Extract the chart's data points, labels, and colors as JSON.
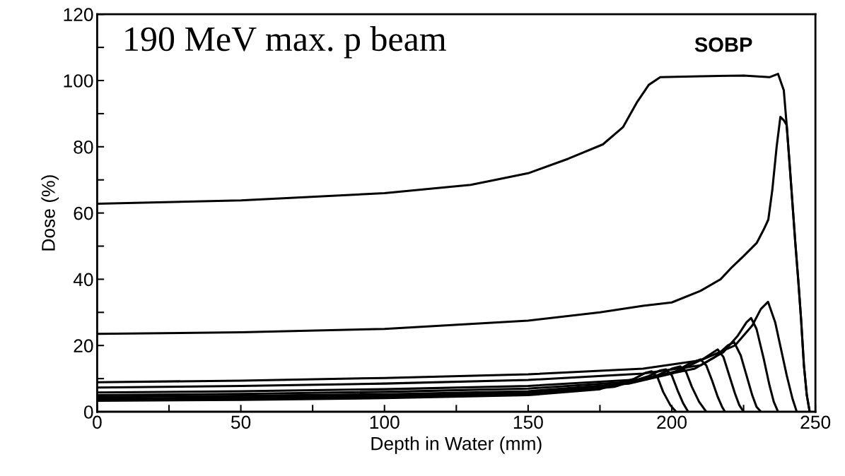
{
  "chart_data": {
    "type": "line",
    "xlabel": "Depth in Water (mm)",
    "ylabel": "Dose (%)",
    "xlim": [
      0,
      250
    ],
    "ylim": [
      0,
      120
    ],
    "xticks": [
      0,
      {
        "value": 25,
        "label": null
      },
      50,
      {
        "value": 75,
        "label": null
      },
      100,
      {
        "value": 125,
        "label": null
      },
      150,
      {
        "value": 175,
        "label": null
      },
      200,
      {
        "value": 225,
        "label": null
      },
      250
    ],
    "yticks": [
      0,
      {
        "value": 10,
        "label": null
      },
      20,
      {
        "value": 30,
        "label": null
      },
      40,
      {
        "value": 50,
        "label": null
      },
      60,
      {
        "value": 70,
        "label": null
      },
      80,
      {
        "value": 90,
        "label": null
      },
      100,
      {
        "value": 110,
        "label": null
      },
      120
    ],
    "grid": false,
    "legend": false,
    "marker": "none",
    "line_style": "solid",
    "annotations": [
      "190 MeV max. p beam",
      "SOBP"
    ],
    "series": [
      {
        "color": "#000000",
        "x": [
          0,
          50,
          100,
          130,
          150,
          164,
          176,
          183,
          188,
          192,
          196,
          210,
          225,
          234,
          237,
          239,
          240,
          241,
          242,
          243,
          244,
          245,
          246,
          247,
          248
        ],
        "values": [
          62.8,
          63.8,
          66,
          68.5,
          72,
          76.4,
          80.7,
          85.9,
          93.6,
          98.7,
          101,
          101.3,
          101.5,
          101,
          102,
          97,
          86.5,
          75,
          63,
          51,
          40,
          28,
          14,
          5,
          0
        ]
      },
      {
        "color": "#000000",
        "x": [
          0,
          50,
          100,
          150,
          175,
          190,
          200,
          210,
          217,
          221,
          225,
          229.6,
          232,
          233.6,
          235,
          236.5,
          237.8,
          239,
          240,
          241,
          242,
          243,
          244,
          245,
          246,
          247,
          248
        ],
        "values": [
          23.5,
          24,
          25,
          27.5,
          30,
          32,
          33,
          36.5,
          40,
          43.7,
          47,
          51,
          55,
          58,
          67,
          80,
          89,
          88,
          86.5,
          75,
          63,
          51,
          40,
          28,
          14,
          5,
          0
        ]
      },
      {
        "color": "#000000",
        "x": [
          0,
          50,
          100,
          150,
          190,
          210,
          222,
          228,
          231,
          233.5,
          236,
          238,
          240,
          242,
          243.5
        ],
        "values": [
          8.9,
          9.4,
          10.2,
          11.3,
          13,
          15.5,
          20,
          26,
          31,
          33.2,
          27,
          19,
          11,
          4,
          0
        ]
      },
      {
        "color": "#000000",
        "x": [
          0,
          50,
          100,
          150,
          190,
          210,
          218,
          223,
          226,
          227.6,
          229.5,
          232,
          234,
          235.5,
          237
        ],
        "values": [
          7.3,
          7.8,
          8.5,
          9.6,
          11.5,
          14,
          18,
          23,
          27,
          28.3,
          25,
          16,
          8,
          3,
          0
        ]
      },
      {
        "color": "#000000",
        "x": [
          0,
          50,
          100,
          150,
          190,
          208,
          215,
          219.5,
          221.7,
          224,
          226,
          228,
          229.5,
          231
        ],
        "values": [
          5.8,
          6.2,
          6.8,
          7.8,
          9.8,
          13,
          16.5,
          20,
          21,
          17,
          11,
          5,
          1.5,
          0
        ]
      },
      {
        "color": "#000000",
        "x": [
          0,
          50,
          100,
          150,
          185,
          203,
          211,
          216,
          218,
          220,
          222,
          223.5,
          225
        ],
        "values": [
          5,
          5.4,
          6,
          7,
          9,
          12.5,
          16,
          18.8,
          16.5,
          11,
          5.5,
          2,
          0
        ]
      },
      {
        "color": "#000000",
        "x": [
          0,
          50,
          100,
          150,
          185,
          200,
          206,
          210,
          212,
          214,
          216,
          217.5,
          218.5
        ],
        "values": [
          4.5,
          4.8,
          5.3,
          6.2,
          8.5,
          11.5,
          14.5,
          15.8,
          14,
          9.5,
          4.5,
          1.5,
          0
        ]
      },
      {
        "color": "#000000",
        "x": [
          0,
          50,
          100,
          150,
          180,
          195,
          200,
          203,
          205,
          207,
          209.5,
          212
        ],
        "values": [
          4,
          4.3,
          4.8,
          5.7,
          7.8,
          11,
          13,
          13.7,
          12,
          7.5,
          3,
          0
        ]
      },
      {
        "color": "#000000",
        "x": [
          0,
          50,
          100,
          150,
          180,
          192,
          196,
          198,
          200,
          202,
          204,
          205.7
        ],
        "values": [
          3.6,
          3.9,
          4.4,
          5.3,
          7.5,
          10.8,
          12.5,
          12.8,
          11,
          6.5,
          2.5,
          0
        ]
      },
      {
        "color": "#000000",
        "x": [
          0,
          50,
          100,
          150,
          175,
          187,
          191,
          193,
          195,
          197,
          199.5,
          201.5
        ],
        "values": [
          3.3,
          3.6,
          4.1,
          5,
          6.8,
          10,
          11.8,
          12.2,
          10.5,
          6,
          2,
          0
        ]
      }
    ]
  }
}
